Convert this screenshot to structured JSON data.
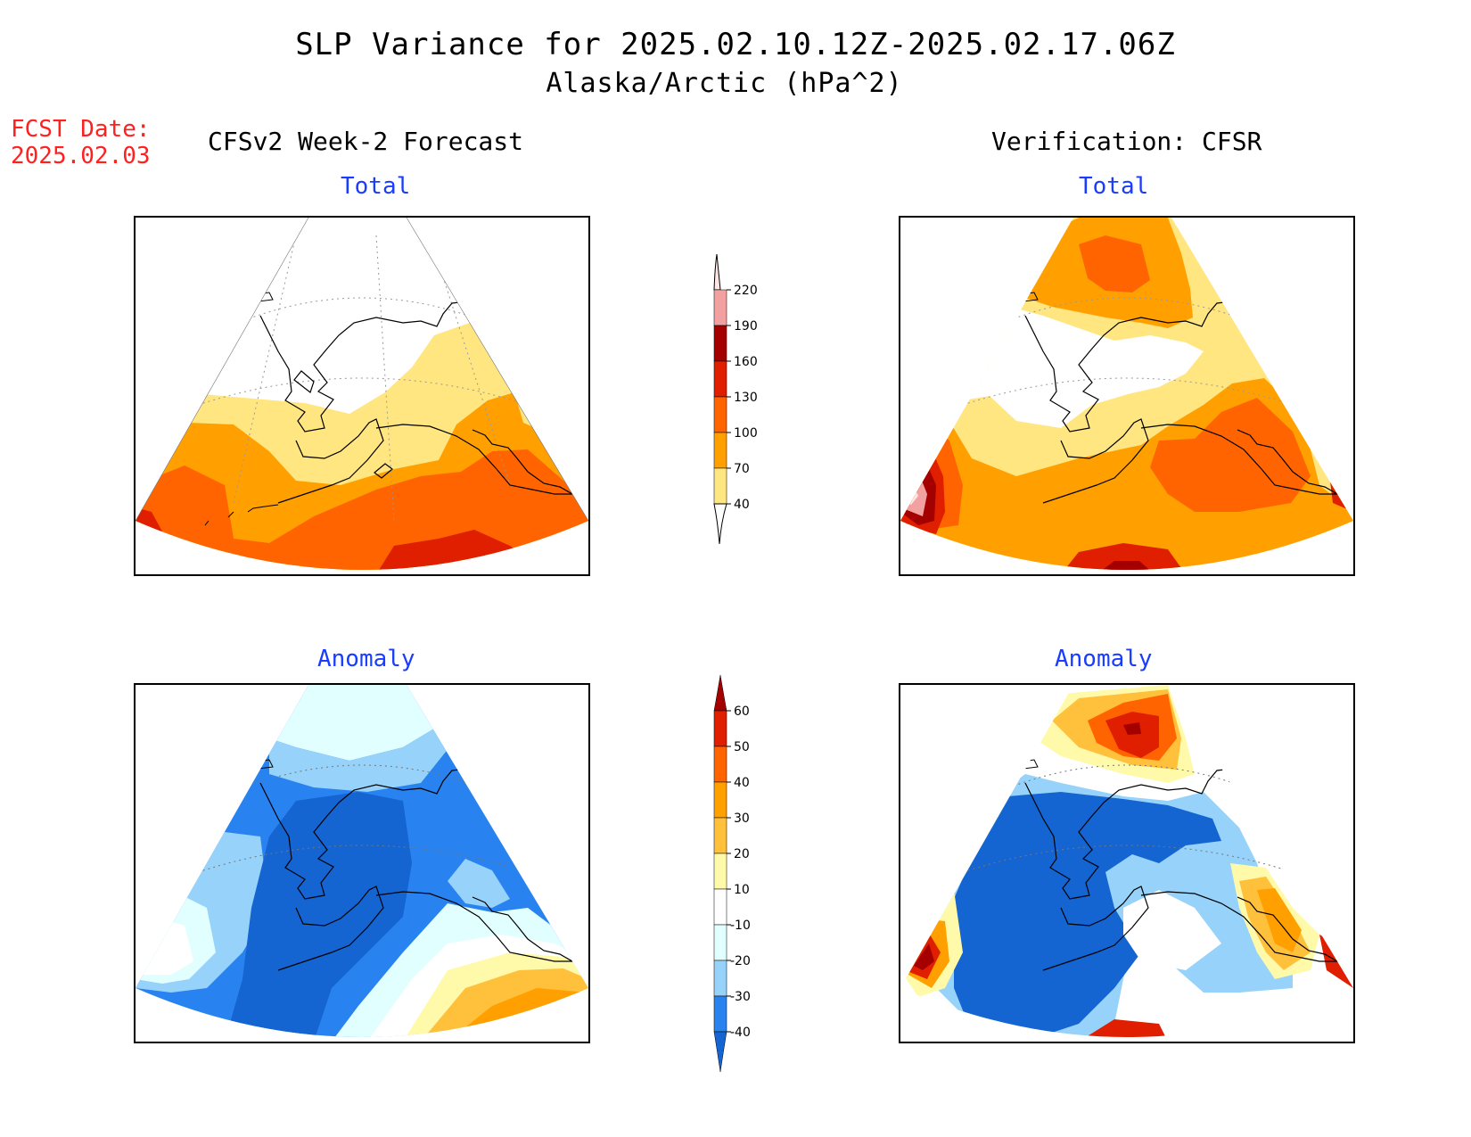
{
  "header": {
    "title": "SLP Variance for 2025.02.10.12Z-2025.02.17.06Z",
    "subtitle": "Alaska/Arctic (hPa^2)",
    "fcst_label": "FCST Date:",
    "fcst_date": "2025.02.03"
  },
  "columns": {
    "left": "CFSv2 Week-2 Forecast",
    "right": "Verification: CFSR"
  },
  "panels": {
    "top_left_label": "Total",
    "top_right_label": "Total",
    "bottom_left_label": "Anomaly",
    "bottom_right_label": "Anomaly"
  },
  "colors": {
    "total": [
      "#ffe680",
      "#ffa000",
      "#ff6400",
      "#e01e00",
      "#a50000",
      "#f2a0a0",
      "#ffe6e6"
    ],
    "anom": [
      "#1464d2",
      "#2882f0",
      "#96d2fa",
      "#e1ffff",
      "#ffffff",
      "#fffaaa",
      "#ffc03c",
      "#ffa000",
      "#ff6400",
      "#e01e00",
      "#a50000"
    ]
  },
  "legend_total": {
    "ticks": [
      "220",
      "190",
      "160",
      "130",
      "100",
      "70",
      "40"
    ]
  },
  "legend_anomaly": {
    "ticks": [
      "60",
      "50",
      "40",
      "30",
      "20",
      "10",
      "-10",
      "-20",
      "-30",
      "-40"
    ]
  }
}
